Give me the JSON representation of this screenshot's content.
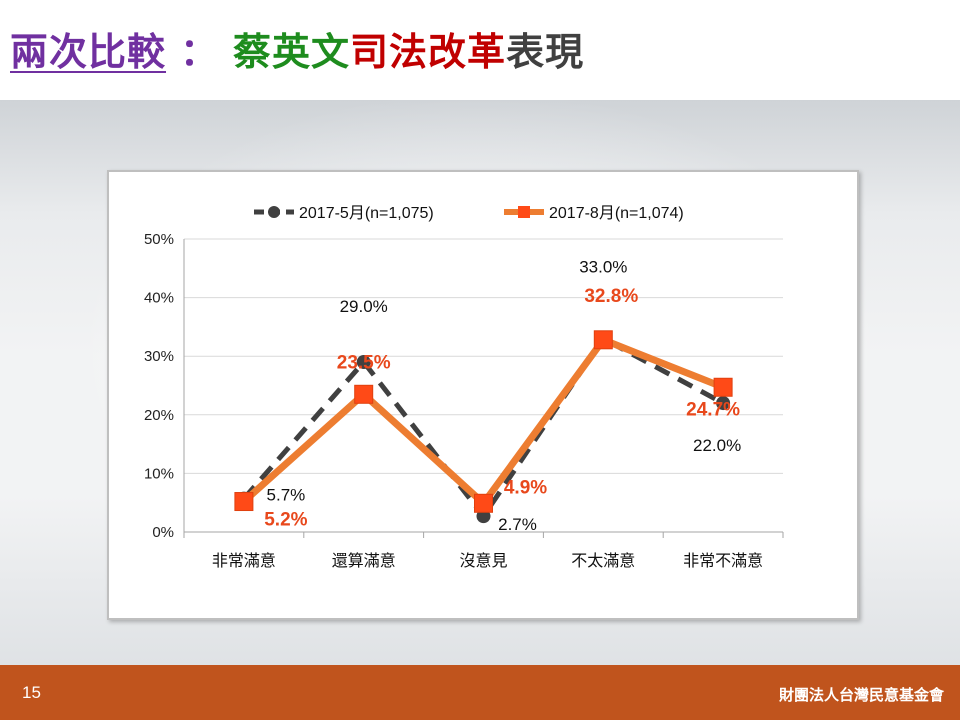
{
  "title": {
    "part1": "兩次比較",
    "sep": "：",
    "part2": "蔡英文",
    "part3": "司法改革",
    "part4": "表現"
  },
  "colors": {
    "series1": "#404040",
    "series2": "#ed7d31",
    "label2": "#e8481c",
    "footer": "#c0541d"
  },
  "footer": {
    "page": "15",
    "org": "財團法人台灣民意基金會"
  },
  "chart_data": {
    "type": "line",
    "categories": [
      "非常滿意",
      "還算滿意",
      "沒意見",
      "不太滿意",
      "非常不滿意"
    ],
    "series": [
      {
        "name": "2017-5月(n=1,075)",
        "values": [
          5.7,
          29.0,
          2.7,
          33.0,
          22.0
        ],
        "labels": [
          "5.7%",
          "29.0%",
          "2.7%",
          "33.0%",
          "22.0%"
        ],
        "style": "dashed-circle"
      },
      {
        "name": "2017-8月(n=1,074)",
        "values": [
          5.2,
          23.5,
          4.9,
          32.8,
          24.7
        ],
        "labels": [
          "5.2%",
          "23.5%",
          "4.9%",
          "32.8%",
          "24.7%"
        ],
        "style": "solid-square"
      }
    ],
    "yticks": [
      "0%",
      "10%",
      "20%",
      "30%",
      "40%",
      "50%"
    ],
    "ylim": [
      0,
      50
    ],
    "grid": true,
    "legend": "top"
  }
}
